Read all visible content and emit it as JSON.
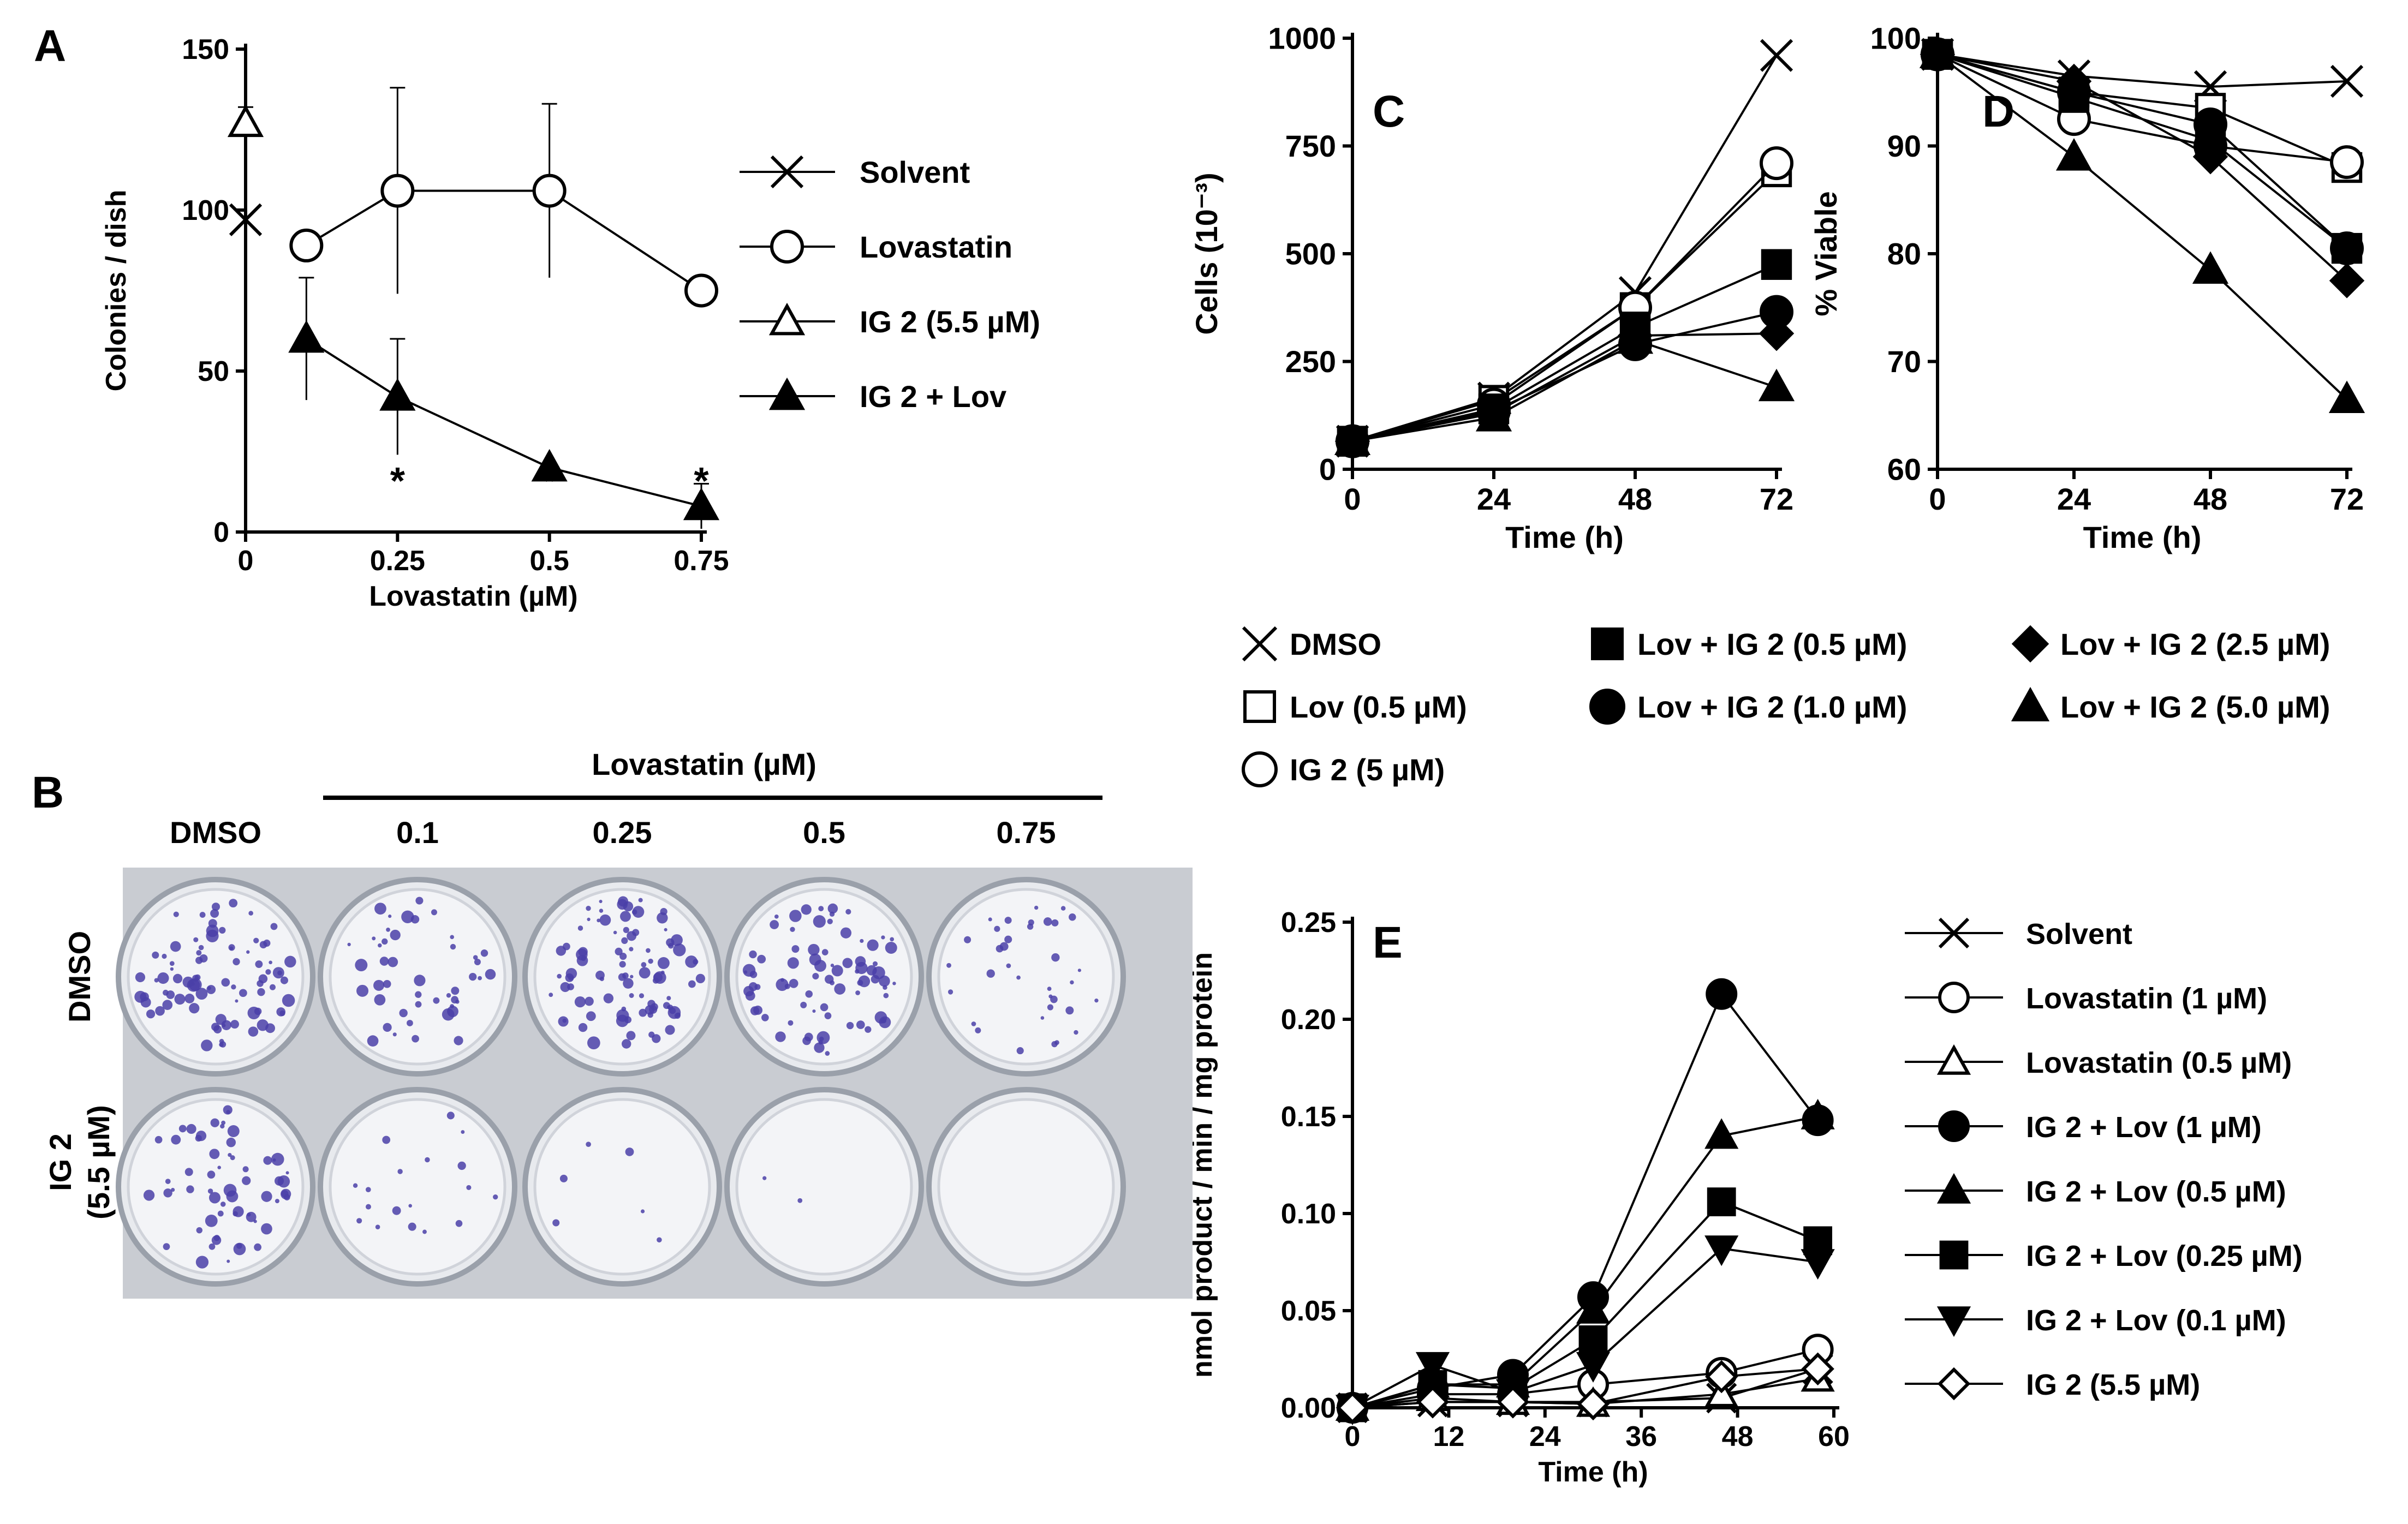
{
  "chart_data": [
    {
      "panel": "A",
      "type": "line",
      "xlabel": "Lovastatin (µM)",
      "ylabel": "Colonies / dish",
      "xlim": [
        0,
        0.75
      ],
      "ylim": [
        0,
        150
      ],
      "xticks": [
        "0",
        "0.25",
        "0.5",
        "0.75"
      ],
      "yticks": [
        "0",
        "50",
        "100",
        "150"
      ],
      "legend": "right",
      "series": [
        {
          "name": "Solvent",
          "marker": "cross",
          "connected": false,
          "x": [
            0
          ],
          "y": [
            97
          ],
          "err": [
            35
          ]
        },
        {
          "name": "Lovastatin",
          "marker": "circle-open",
          "connected": true,
          "x": [
            0.1,
            0.25,
            0.5,
            0.75
          ],
          "y": [
            89,
            106,
            106,
            75
          ],
          "err": [
            0,
            32,
            27,
            0
          ]
        },
        {
          "name": "IG 2 (5.5 µM)",
          "marker": "triangle-open",
          "connected": false,
          "x": [
            0
          ],
          "y": [
            127
          ],
          "err": [
            0
          ]
        },
        {
          "name": "IG 2 + Lov",
          "marker": "triangle-filled",
          "connected": true,
          "x": [
            0.1,
            0.25,
            0.5,
            0.75
          ],
          "y": [
            60,
            42,
            20,
            8
          ],
          "err": [
            19,
            18,
            0,
            7
          ]
        }
      ],
      "annotations": [
        {
          "text": "*",
          "x": 0.25
        },
        {
          "text": "*",
          "x": 0.5
        },
        {
          "text": "*",
          "x": 0.75
        }
      ]
    },
    {
      "panel": "C",
      "type": "line",
      "xlabel": "Time (h)",
      "ylabel": "Cells (10⁻³)",
      "xlim": [
        0,
        72
      ],
      "ylim": [
        0,
        1000
      ],
      "xticks": [
        "0",
        "24",
        "48",
        "72"
      ],
      "yticks": [
        "0",
        "250",
        "500",
        "750",
        "1000"
      ],
      "series": [
        {
          "name": "DMSO",
          "marker": "cross",
          "x": [
            0,
            24,
            48,
            72
          ],
          "y": [
            65,
            165,
            410,
            960
          ]
        },
        {
          "name": "Lov (0.5 µM)",
          "marker": "square-open",
          "x": [
            0,
            24,
            48,
            72
          ],
          "y": [
            65,
            160,
            375,
            690
          ]
        },
        {
          "name": "IG 2 (5 µM)",
          "marker": "circle-open",
          "x": [
            0,
            24,
            48,
            72
          ],
          "y": [
            65,
            150,
            375,
            710
          ]
        },
        {
          "name": "Lov + IG 2 (0.5 µM)",
          "marker": "square-filled",
          "x": [
            0,
            24,
            48,
            72
          ],
          "y": [
            65,
            140,
            330,
            475
          ]
        },
        {
          "name": "Lov + IG 2 (1.0 µM)",
          "marker": "circle-filled",
          "x": [
            0,
            24,
            48,
            72
          ],
          "y": [
            65,
            135,
            290,
            365
          ]
        },
        {
          "name": "Lov + IG 2 (2.5 µM)",
          "marker": "diamond-filled",
          "x": [
            0,
            24,
            48,
            72
          ],
          "y": [
            65,
            130,
            310,
            315
          ]
        },
        {
          "name": "Lov + IG 2 (5.0 µM)",
          "marker": "triangle-filled",
          "x": [
            0,
            24,
            48,
            72
          ],
          "y": [
            65,
            120,
            300,
            190
          ]
        }
      ]
    },
    {
      "panel": "D",
      "type": "line",
      "xlabel": "Time (h)",
      "ylabel": "% Viable",
      "xlim": [
        0,
        72
      ],
      "ylim": [
        60,
        100
      ],
      "xticks": [
        "0",
        "24",
        "48",
        "72"
      ],
      "yticks": [
        "60",
        "70",
        "80",
        "90",
        "100"
      ],
      "series": [
        {
          "name": "DMSO",
          "marker": "cross",
          "x": [
            0,
            24,
            48,
            72
          ],
          "y": [
            98.5,
            96.5,
            95.5,
            96
          ]
        },
        {
          "name": "Lov (0.5 µM)",
          "marker": "square-open",
          "x": [
            0,
            24,
            48,
            72
          ],
          "y": [
            98.5,
            95,
            93.5,
            88
          ]
        },
        {
          "name": "IG 2 (5 µM)",
          "marker": "circle-open",
          "x": [
            0,
            24,
            48,
            72
          ],
          "y": [
            98.5,
            92.5,
            90,
            88.5
          ]
        },
        {
          "name": "Lov + IG 2 (0.5 µM)",
          "marker": "square-filled",
          "x": [
            0,
            24,
            48,
            72
          ],
          "y": [
            98.5,
            94.5,
            90.5,
            80.5
          ]
        },
        {
          "name": "Lov + IG 2 (1.0 µM)",
          "marker": "circle-filled",
          "x": [
            0,
            24,
            48,
            72
          ],
          "y": [
            98.5,
            95,
            92,
            80.5
          ]
        },
        {
          "name": "Lov + IG 2 (2.5 µM)",
          "marker": "diamond-filled",
          "x": [
            0,
            24,
            48,
            72
          ],
          "y": [
            98.5,
            96,
            89,
            77.5
          ]
        },
        {
          "name": "Lov + IG 2 (5.0 µM)",
          "marker": "triangle-filled",
          "x": [
            0,
            24,
            48,
            72
          ],
          "y": [
            98.5,
            89,
            78.5,
            66.5
          ]
        }
      ]
    },
    {
      "panel": "E",
      "type": "line",
      "xlabel": "Time (h)",
      "ylabel": "nmol product / min / mg protein",
      "xlim": [
        0,
        60
      ],
      "ylim": [
        0,
        0.25
      ],
      "xticks": [
        "0",
        "12",
        "24",
        "36",
        "48",
        "60"
      ],
      "yticks": [
        "0.00",
        "0.05",
        "0.10",
        "0.15",
        "0.20",
        "0.25"
      ],
      "legend": "right",
      "series": [
        {
          "name": "Solvent",
          "marker": "cross",
          "x": [
            0,
            10,
            20,
            30,
            46,
            58
          ],
          "y": [
            0,
            0.003,
            0.003,
            0.003,
            0.005,
            0.02
          ]
        },
        {
          "name": "Lovastatin (1 µM)",
          "marker": "circle-open",
          "x": [
            0,
            10,
            20,
            30,
            46,
            58
          ],
          "y": [
            0,
            0.007,
            0.007,
            0.012,
            0.018,
            0.03
          ]
        },
        {
          "name": "Lovastatin (0.5 µM)",
          "marker": "triangle-open",
          "x": [
            0,
            10,
            20,
            30,
            46,
            58
          ],
          "y": [
            0,
            0.005,
            0.003,
            0.002,
            0.007,
            0.015
          ]
        },
        {
          "name": "IG 2 + Lov (1 µM)",
          "marker": "circle-filled",
          "x": [
            0,
            10,
            20,
            30,
            46,
            58
          ],
          "y": [
            0,
            0.01,
            0.017,
            0.057,
            0.213,
            0.148
          ]
        },
        {
          "name": "IG 2 + Lov (0.5 µM)",
          "marker": "triangle-filled",
          "x": [
            0,
            10,
            20,
            30,
            46,
            58
          ],
          "y": [
            0,
            0.012,
            0.012,
            0.05,
            0.14,
            0.15
          ]
        },
        {
          "name": "IG 2 + Lov (0.25 µM)",
          "marker": "square-filled",
          "x": [
            0,
            10,
            20,
            30,
            46,
            58
          ],
          "y": [
            0,
            0.012,
            0.01,
            0.035,
            0.106,
            0.086
          ]
        },
        {
          "name": "IG 2 + Lov (0.1 µM)",
          "marker": "triangle-down-filled",
          "x": [
            0,
            10,
            20,
            30,
            46,
            58
          ],
          "y": [
            0,
            0.022,
            0.008,
            0.022,
            0.082,
            0.075
          ]
        },
        {
          "name": "IG 2 (5.5 µM)",
          "marker": "diamond-open",
          "x": [
            0,
            10,
            20,
            30,
            46,
            58
          ],
          "y": [
            0,
            0.003,
            0.003,
            0.002,
            0.016,
            0.02
          ]
        }
      ]
    }
  ],
  "panels": {
    "A": "A",
    "B": "B",
    "C": "C",
    "D": "D",
    "E": "E"
  },
  "photo_b": {
    "header": "Lovastatin (µM)",
    "columns": [
      "DMSO",
      "0.1",
      "0.25",
      "0.5",
      "0.75"
    ],
    "row_labels": [
      "DMSO",
      "IG 2",
      "(5.5 µM)"
    ],
    "density": [
      [
        85,
        45,
        95,
        80,
        35
      ],
      [
        60,
        18,
        6,
        2,
        0
      ]
    ]
  }
}
